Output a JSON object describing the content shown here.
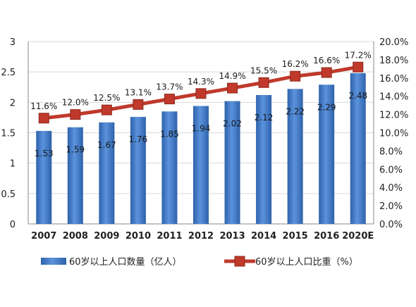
{
  "chart_data": {
    "type": "bar+line",
    "categories": [
      "2007",
      "2008",
      "2009",
      "2010",
      "2011",
      "2012",
      "2013",
      "2014",
      "2015",
      "2016",
      "2020E"
    ],
    "series": [
      {
        "name": "60岁以上人口数量（亿人）",
        "type": "bar",
        "axis": "left",
        "color": "#3f78c6",
        "values": [
          1.53,
          1.59,
          1.67,
          1.76,
          1.85,
          1.94,
          2.02,
          2.12,
          2.22,
          2.29,
          2.48
        ],
        "labels": [
          "1.53",
          "1.59",
          "1.67",
          "1.76",
          "1.85",
          "1.94",
          "2.02",
          "2.12",
          "2.22",
          "2.29",
          "2.48"
        ]
      },
      {
        "name": "60岁以上人口比重（%）",
        "type": "line",
        "axis": "right",
        "color": "#c0392b",
        "values": [
          11.6,
          12.0,
          12.5,
          13.1,
          13.7,
          14.3,
          14.9,
          15.5,
          16.2,
          16.6,
          17.2
        ],
        "labels": [
          "11.6%",
          "12.0%",
          "12.5%",
          "13.1%",
          "13.7%",
          "14.3%",
          "14.9%",
          "15.5%",
          "16.2%",
          "16.6%",
          "17.2%"
        ]
      }
    ],
    "y_left": {
      "min": 0,
      "max": 3,
      "ticks": [
        "0",
        "0.5",
        "1",
        "1.5",
        "2",
        "2.5",
        "3"
      ],
      "tick_values": [
        0,
        0.5,
        1,
        1.5,
        2,
        2.5,
        3
      ]
    },
    "y_right": {
      "min": 0,
      "max": 20,
      "ticks": [
        "0.0%",
        "2.0%",
        "4.0%",
        "6.0%",
        "8.0%",
        "10.0%",
        "12.0%",
        "14.0%",
        "16.0%",
        "18.0%",
        "20.0%"
      ],
      "tick_values": [
        0,
        2,
        4,
        6,
        8,
        10,
        12,
        14,
        16,
        18,
        20
      ]
    },
    "gridlines": true,
    "legend_position": "bottom"
  }
}
